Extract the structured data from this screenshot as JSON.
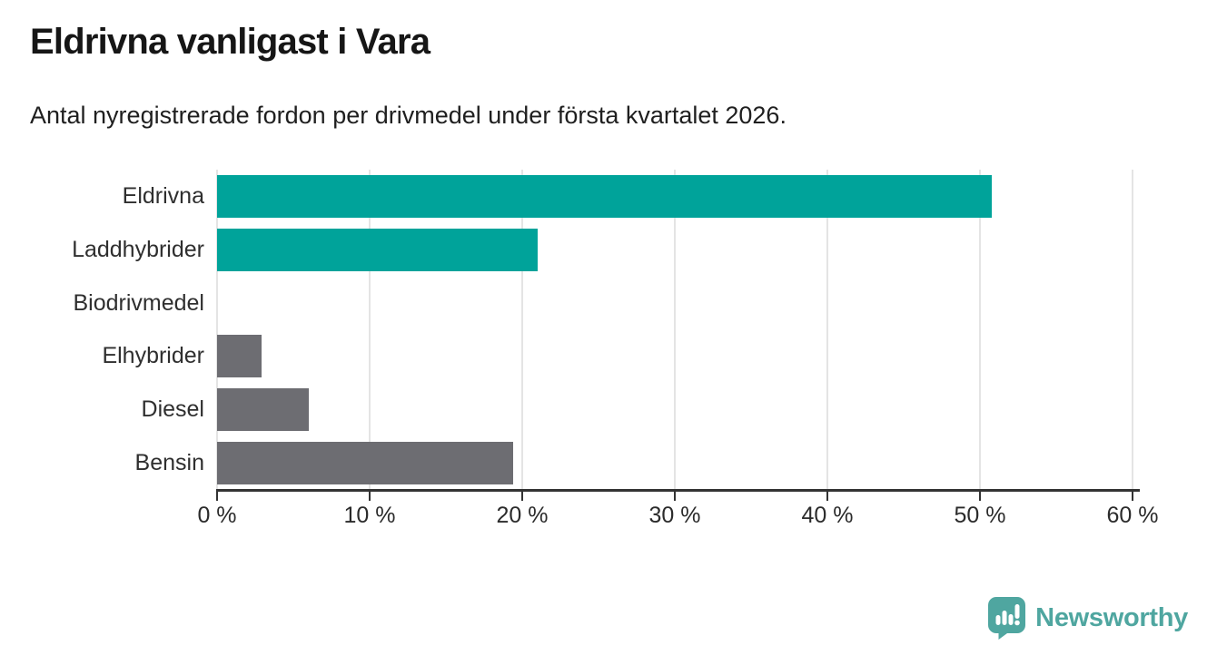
{
  "header": {
    "title": "Eldrivna vanligast i Vara",
    "subtitle": "Antal nyregistrerade fordon per drivmedel under första kvartalet 2026."
  },
  "chart_data": {
    "type": "bar",
    "orientation": "horizontal",
    "categories": [
      "Eldrivna",
      "Laddhybrider",
      "Biodrivmedel",
      "Elhybrider",
      "Diesel",
      "Bensin"
    ],
    "values": [
      50.8,
      21,
      0,
      2.9,
      6,
      19.4
    ],
    "unit": "%",
    "xlim": [
      0,
      60
    ],
    "x_ticks": [
      0,
      10,
      20,
      30,
      40,
      50,
      60
    ],
    "x_tick_labels": [
      "0 %",
      "10 %",
      "20 %",
      "30 %",
      "40 %",
      "50 %",
      "60 %"
    ],
    "grid": "vertical-only",
    "legend": "none",
    "bar_colors": [
      "#00a39a",
      "#00a39a",
      "#6d6d72",
      "#6d6d72",
      "#6d6d72",
      "#6d6d72"
    ]
  },
  "colors": {
    "bar-teal": "#00a39a",
    "bar-gray": "#6d6d72",
    "grid": "#e4e4e4",
    "axis": "#333333",
    "brand": "#4fa6a0"
  },
  "footer": {
    "brand": "Newsworthy",
    "logo_icon": "speech-bubble-with-bar-chart-and-exclamation"
  }
}
